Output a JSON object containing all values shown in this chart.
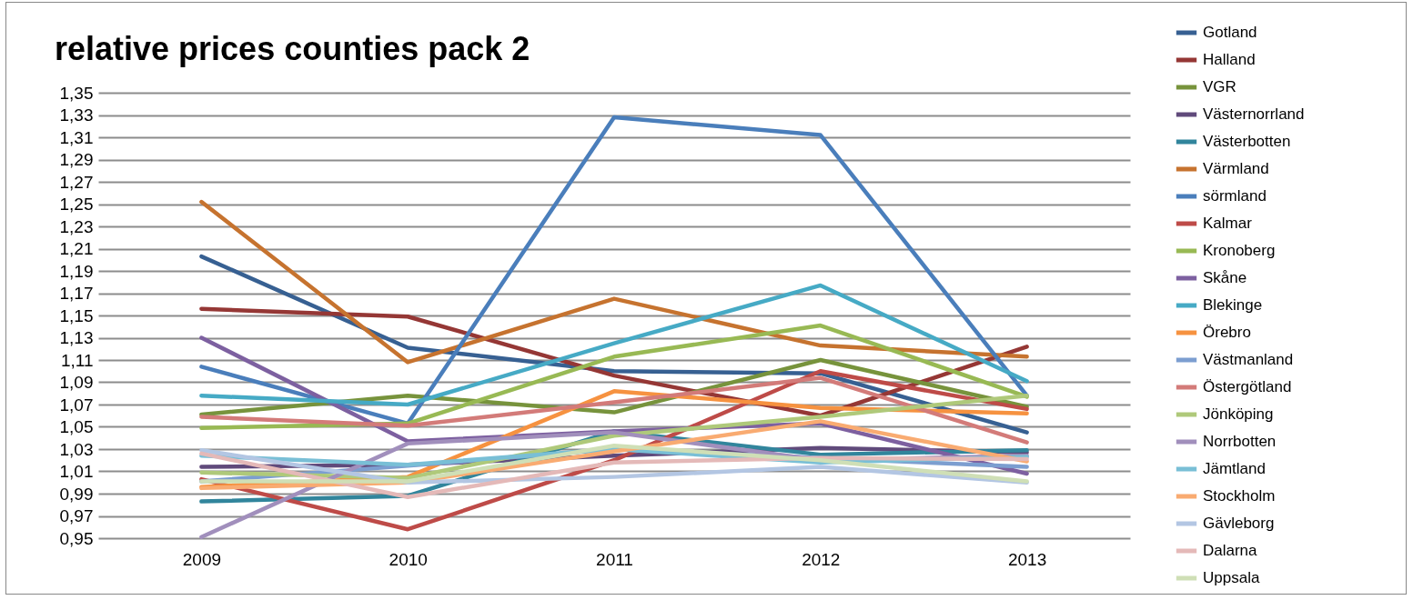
{
  "chart_data": {
    "type": "line",
    "title": "relative prices counties pack 2",
    "categories": [
      "2009",
      "2010",
      "2011",
      "2012",
      "2013"
    ],
    "ylim": [
      0.95,
      1.35
    ],
    "yticks": [
      {
        "value": 0.95,
        "label": "0,95"
      },
      {
        "value": 0.97,
        "label": "0,97"
      },
      {
        "value": 0.99,
        "label": "0,99"
      },
      {
        "value": 1.01,
        "label": "1,01"
      },
      {
        "value": 1.03,
        "label": "1,03"
      },
      {
        "value": 1.05,
        "label": "1,05"
      },
      {
        "value": 1.07,
        "label": "1,07"
      },
      {
        "value": 1.09,
        "label": "1,09"
      },
      {
        "value": 1.11,
        "label": "1,11"
      },
      {
        "value": 1.13,
        "label": "1,13"
      },
      {
        "value": 1.15,
        "label": "1,15"
      },
      {
        "value": 1.17,
        "label": "1,17"
      },
      {
        "value": 1.19,
        "label": "1,19"
      },
      {
        "value": 1.21,
        "label": "1,21"
      },
      {
        "value": 1.23,
        "label": "1,23"
      },
      {
        "value": 1.25,
        "label": "1,25"
      },
      {
        "value": 1.27,
        "label": "1,27"
      },
      {
        "value": 1.29,
        "label": "1,29"
      },
      {
        "value": 1.31,
        "label": "1,31"
      },
      {
        "value": 1.33,
        "label": "1,33"
      },
      {
        "value": 1.35,
        "label": "1,35"
      }
    ],
    "grid": "y",
    "legend": "right",
    "marker": "none",
    "line_style": "solid",
    "series": [
      {
        "name": "Gotland",
        "color": "#376092",
        "values": [
          1.203,
          1.121,
          1.1,
          1.098,
          1.045
        ]
      },
      {
        "name": "Halland",
        "color": "#953735",
        "values": [
          1.156,
          1.149,
          1.096,
          1.06,
          1.122
        ]
      },
      {
        "name": "VGR",
        "color": "#77933c",
        "values": [
          1.061,
          1.078,
          1.063,
          1.11,
          1.068
        ]
      },
      {
        "name": "Västernorrland",
        "color": "#604a7b",
        "values": [
          1.014,
          1.016,
          1.024,
          1.031,
          1.027
        ]
      },
      {
        "name": "Västerbotten",
        "color": "#31859c",
        "values": [
          0.983,
          0.988,
          1.046,
          1.025,
          1.029
        ]
      },
      {
        "name": "Värmland",
        "color": "#c6732f",
        "values": [
          1.252,
          1.108,
          1.165,
          1.123,
          1.113
        ]
      },
      {
        "name": "sörmland",
        "color": "#4a7ebb",
        "values": [
          1.104,
          1.053,
          1.328,
          1.312,
          1.078
        ]
      },
      {
        "name": "Kalmar",
        "color": "#be4b48",
        "values": [
          1.003,
          0.958,
          1.02,
          1.1,
          1.066
        ]
      },
      {
        "name": "Kronoberg",
        "color": "#98b954",
        "values": [
          1.049,
          1.053,
          1.113,
          1.141,
          1.077
        ]
      },
      {
        "name": "Skåne",
        "color": "#7d60a0",
        "values": [
          1.13,
          1.037,
          1.046,
          1.053,
          1.008
        ]
      },
      {
        "name": "Blekinge",
        "color": "#46aac5",
        "values": [
          1.078,
          1.07,
          1.125,
          1.177,
          1.091
        ]
      },
      {
        "name": "Örebro",
        "color": "#f69240",
        "values": [
          0.996,
          1.005,
          1.082,
          1.067,
          1.062
        ]
      },
      {
        "name": "Västmanland",
        "color": "#7c9ed0",
        "values": [
          1.001,
          1.015,
          1.03,
          1.022,
          1.014
        ]
      },
      {
        "name": "Östergötland",
        "color": "#d37b79",
        "values": [
          1.059,
          1.051,
          1.072,
          1.094,
          1.036
        ]
      },
      {
        "name": "Jönköping",
        "color": "#afc97a",
        "values": [
          1.009,
          1.004,
          1.042,
          1.059,
          1.078
        ]
      },
      {
        "name": "Norrbotten",
        "color": "#a18fbc",
        "values": [
          0.951,
          1.035,
          1.045,
          1.02,
          1.024
        ]
      },
      {
        "name": "Jämtland",
        "color": "#79bfd6",
        "values": [
          1.024,
          1.016,
          1.03,
          1.018,
          1.023
        ]
      },
      {
        "name": "Stockholm",
        "color": "#f9ab71",
        "values": [
          0.995,
          1.0,
          1.028,
          1.055,
          1.019
        ]
      },
      {
        "name": "Gävleborg",
        "color": "#b3c6e3",
        "values": [
          1.029,
          1.0,
          1.005,
          1.014,
          1.0
        ]
      },
      {
        "name": "Dalarna",
        "color": "#e4b9b8",
        "values": [
          1.026,
          0.987,
          1.018,
          1.022,
          1.021
        ]
      },
      {
        "name": "Uppsala",
        "color": "#cfdfb6",
        "values": [
          1.001,
          1.001,
          1.033,
          1.02,
          1.001
        ]
      }
    ]
  }
}
